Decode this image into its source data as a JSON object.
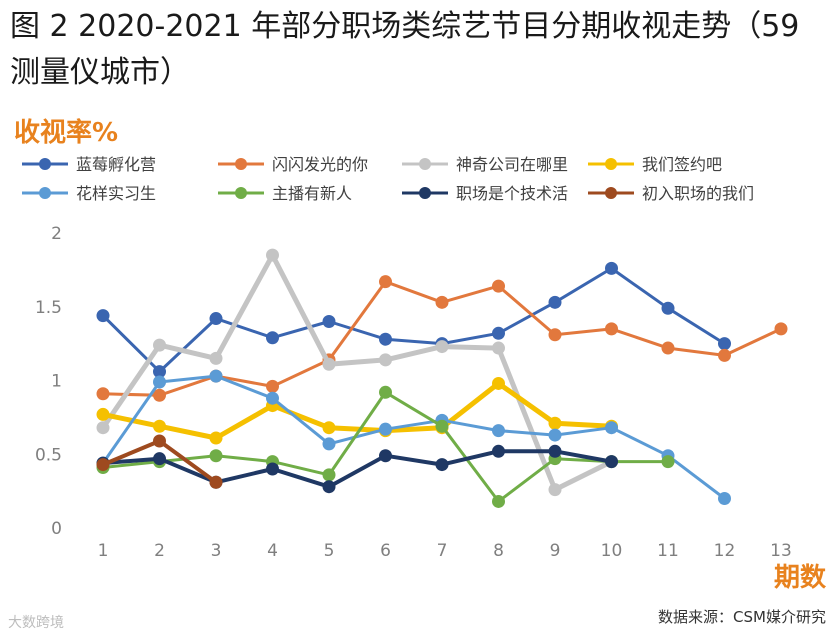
{
  "title": "图 2 2020-2021 年部分职场类综艺节目分期收视走势（59 测量仪城市）",
  "source": "数据来源：CSM媒介研究",
  "watermark": "大数跨境",
  "chart_data": {
    "type": "line",
    "ylabel": "收视率%",
    "xlabel": "期数",
    "x": [
      1,
      2,
      3,
      4,
      5,
      6,
      7,
      8,
      9,
      10,
      11,
      12,
      13
    ],
    "ylim": [
      0,
      2
    ],
    "yticks": [
      "0",
      "0.5",
      "1",
      "1.5",
      "2"
    ],
    "grid": false,
    "legend_position": "top",
    "series": [
      {
        "name": "蓝莓孵化营",
        "color": "#3a65b0",
        "width": 3,
        "values": [
          1.44,
          1.06,
          1.42,
          1.29,
          1.4,
          1.28,
          1.25,
          1.32,
          1.53,
          1.76,
          1.49,
          1.25,
          null
        ]
      },
      {
        "name": "闪闪发光的你",
        "color": "#e2783d",
        "width": 3,
        "values": [
          0.91,
          0.9,
          1.03,
          0.96,
          1.14,
          1.67,
          1.53,
          1.64,
          1.31,
          1.35,
          1.22,
          1.17,
          1.35
        ]
      },
      {
        "name": "神奇公司在哪里",
        "color": "#c4c4c4",
        "width": 5,
        "values": [
          0.68,
          1.24,
          1.15,
          1.85,
          1.11,
          1.14,
          1.23,
          1.22,
          0.26,
          0.45,
          null,
          null,
          null
        ]
      },
      {
        "name": "我们签约吧",
        "color": "#f5c000",
        "width": 5,
        "values": [
          0.77,
          0.69,
          0.61,
          0.83,
          0.68,
          0.66,
          0.68,
          0.98,
          0.71,
          0.69,
          null,
          null,
          null
        ]
      },
      {
        "name": "花样实习生",
        "color": "#5b9bd5",
        "width": 3,
        "values": [
          0.44,
          0.99,
          1.03,
          0.88,
          0.57,
          0.67,
          0.73,
          0.66,
          0.63,
          0.68,
          0.49,
          0.2,
          null
        ]
      },
      {
        "name": "主播有新人",
        "color": "#70ad47",
        "width": 3,
        "values": [
          0.41,
          0.45,
          0.49,
          0.45,
          0.36,
          0.92,
          0.69,
          0.18,
          0.47,
          0.45,
          0.45,
          null,
          null
        ]
      },
      {
        "name": "职场是个技术活",
        "color": "#1f3864",
        "width": 4,
        "values": [
          0.44,
          0.47,
          0.31,
          0.4,
          0.28,
          0.49,
          0.43,
          0.52,
          0.52,
          0.45,
          null,
          null,
          null
        ]
      },
      {
        "name": "初入职场的我们",
        "color": "#9e4a1f",
        "width": 4,
        "values": [
          0.43,
          0.59,
          0.31,
          null,
          null,
          null,
          null,
          null,
          null,
          null,
          null,
          null,
          null
        ]
      }
    ]
  }
}
